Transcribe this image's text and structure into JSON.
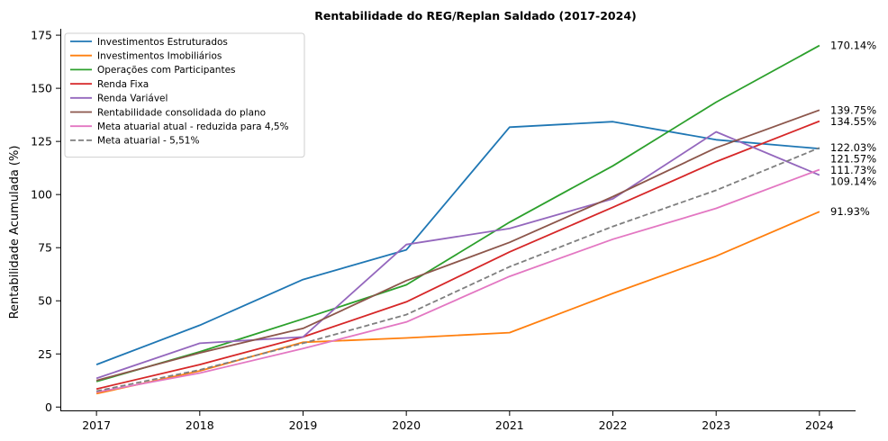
{
  "chart_data": {
    "type": "line",
    "title": "Rentabilidade do REG/Replan Saldado (2017-2024)",
    "xlabel": "",
    "ylabel": "Rentabilidade Acumulada (%)",
    "x": [
      "2017",
      "2018",
      "2019",
      "2020",
      "2021",
      "2022",
      "2023",
      "2024"
    ],
    "xlim": [
      2016.65,
      2024.35
    ],
    "ylim": [
      -2,
      178
    ],
    "yticks": [
      0,
      25,
      50,
      75,
      100,
      125,
      150,
      175
    ],
    "grid": false,
    "legend_position": "upper-left",
    "series": [
      {
        "name": "Investimentos Estruturados",
        "color": "#1f77b4",
        "dashed": false,
        "values": [
          20,
          38.5,
          60,
          74,
          131.7,
          134.3,
          125.8,
          121.57
        ]
      },
      {
        "name": "Investimentos Imobiliários",
        "color": "#ff7f0e",
        "dashed": false,
        "values": [
          6.3,
          17,
          30.5,
          32.5,
          35,
          53.5,
          71,
          91.93
        ]
      },
      {
        "name": "Operações com Participantes",
        "color": "#2ca02c",
        "dashed": false,
        "values": [
          12,
          26,
          41.5,
          57.5,
          87,
          113.5,
          143.5,
          170.14
        ]
      },
      {
        "name": "Renda Fixa",
        "color": "#d62728",
        "dashed": false,
        "values": [
          8.5,
          20,
          33,
          49.5,
          73,
          94,
          115.5,
          134.55
        ]
      },
      {
        "name": "Renda Variável",
        "color": "#9467bd",
        "dashed": false,
        "values": [
          13.5,
          30,
          33,
          76.5,
          84,
          98,
          129.5,
          109.14
        ]
      },
      {
        "name": "Rentabilidade consolidada do plano",
        "color": "#8c564b",
        "dashed": false,
        "values": [
          12.5,
          25.5,
          37,
          59.5,
          77.5,
          99,
          122,
          139.75
        ]
      },
      {
        "name": "Meta atuarial atual - reduzida para 4,5%",
        "color": "#e377c2",
        "dashed": false,
        "values": [
          7,
          16,
          27.5,
          40,
          61.5,
          79,
          93.5,
          111.73
        ]
      },
      {
        "name": "Meta atuarial - 5,51%",
        "color": "#7f7f7f",
        "dashed": true,
        "values": [
          7.5,
          17.5,
          30,
          43.5,
          66,
          85,
          102,
          122.03
        ]
      }
    ],
    "end_labels": [
      "170.14%",
      "139.75%",
      "134.55%",
      "122.03%",
      "121.57%",
      "111.73%",
      "109.14%",
      "91.93%"
    ]
  }
}
